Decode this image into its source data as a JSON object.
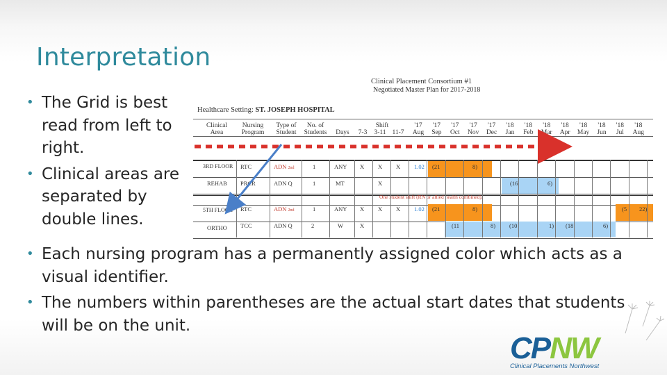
{
  "slide": {
    "title": "Interpretation",
    "bullets_top": [
      "The Grid is best read from left to right.",
      "Clinical areas are separated by double lines."
    ],
    "bullets_bottom": [
      "Each nursing program has a permanently assigned color which acts as a visual identifier.",
      "The numbers within parentheses are the actual start dates that students will be on the unit."
    ]
  },
  "plan": {
    "title": "Clinical Placement Consortium #1",
    "subtitle": "Negotiated Master Plan for 2017-2018",
    "setting_label": "Healthcare Setting:",
    "setting_value": "ST. JOSEPH HOSPITAL",
    "headers": {
      "clinical_area": [
        "Clinical",
        "Area"
      ],
      "nursing_program": [
        "Nursing",
        "Program"
      ],
      "type_of_student": [
        "Type of",
        "Student"
      ],
      "no_of_students": [
        "No. of",
        "Students"
      ],
      "days": "Days",
      "shift_label": "Shift",
      "shifts": [
        "7-3",
        "3-11",
        "11-7"
      ],
      "months": [
        [
          "'17",
          "Aug"
        ],
        [
          "'17",
          "Sep"
        ],
        [
          "'17",
          "Oct"
        ],
        [
          "'17",
          "Nov"
        ],
        [
          "'17",
          "Dec"
        ],
        [
          "'18",
          "Jan"
        ],
        [
          "'18",
          "Feb"
        ],
        [
          "'18",
          "Mar"
        ],
        [
          "'18",
          "Apr"
        ],
        [
          "'18",
          "May"
        ],
        [
          "'18",
          "Jun"
        ],
        [
          "'18",
          "Jul"
        ],
        [
          "'18",
          "Aug"
        ]
      ]
    },
    "rows": [
      {
        "area": "3RD FLOOR",
        "program": "RTC",
        "type": "ADN",
        "note": "2nd",
        "num": "1",
        "days": "ANY",
        "s1": "X",
        "s2": "X",
        "s3": "X",
        "cell1": "1.02",
        "cell2": "(21",
        "cell3": "8)"
      },
      {
        "area": "REHAB",
        "program": "PRCR",
        "type": "ADN Q",
        "num": "1",
        "days": "MT",
        "s1": "",
        "s2": "X",
        "s3": "",
        "cell1": "(16",
        "cell2": "6)"
      },
      {
        "area": "5TH FLOOR",
        "program": "RTC",
        "type": "ADN",
        "note": "2nd",
        "num": "1",
        "days": "ANY",
        "s1": "X",
        "s2": "X",
        "s3": "X",
        "cell1": "1.02",
        "cell2": "(21",
        "cell3": "8)",
        "cell4": "(5",
        "cell5": "22)"
      },
      {
        "area": "ORTHO",
        "program": "TCC",
        "type": "ADN Q",
        "num": "2",
        "days": "W",
        "s1": "X",
        "s2": "",
        "s3": "",
        "cell1": "(11",
        "cell2": "8)",
        "cell3": "(10",
        "cell4": "1)",
        "cell5": "(18",
        "cell6": "6)"
      }
    ],
    "shift_note": "One student shift (RN or allied health combined)."
  },
  "logo": {
    "cp": "CP",
    "nw": "NW",
    "tagline": "Clinical Placements Northwest"
  },
  "colors": {
    "title": "#2f8a9c",
    "bullet": "#2f8a9c",
    "arrow_red": "#d9312b",
    "arrow_blue": "#4a7fc8",
    "orange": "#f7941d",
    "light_blue": "#a9d4f5"
  }
}
